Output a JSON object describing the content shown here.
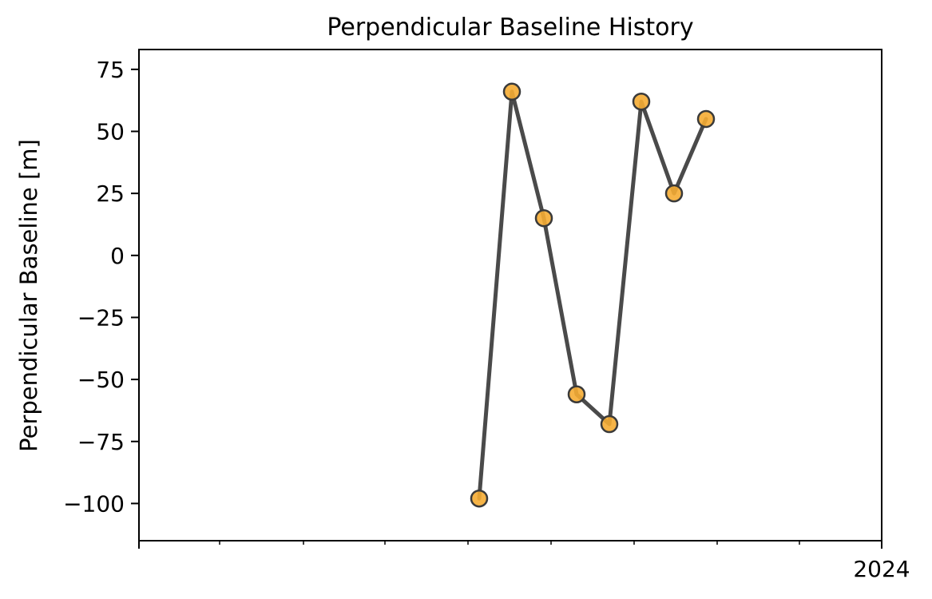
{
  "chart_data": {
    "type": "line",
    "title": "Perpendicular Baseline History",
    "xlabel": "",
    "ylabel": "Perpendicular Baseline [m]",
    "x_tick_labels": [
      "2024"
    ],
    "y_ticks": [
      75,
      50,
      25,
      0,
      -25,
      -50,
      -75,
      -100
    ],
    "y_tick_labels": [
      "75",
      "50",
      "25",
      "0",
      "−25",
      "−50",
      "−75",
      "−100"
    ],
    "ylim": [
      -115,
      83
    ],
    "series": [
      {
        "x": [
          0,
          1,
          2,
          3,
          4,
          5,
          6,
          7
        ],
        "values": [
          -98,
          66,
          15,
          -56,
          -68,
          62,
          25,
          55
        ]
      }
    ],
    "colors": {
      "line": "#4a4a4a",
      "marker_fill": "#f5ac33",
      "marker_edge": "#3a3a3a"
    },
    "grid": false,
    "legend": "none"
  }
}
